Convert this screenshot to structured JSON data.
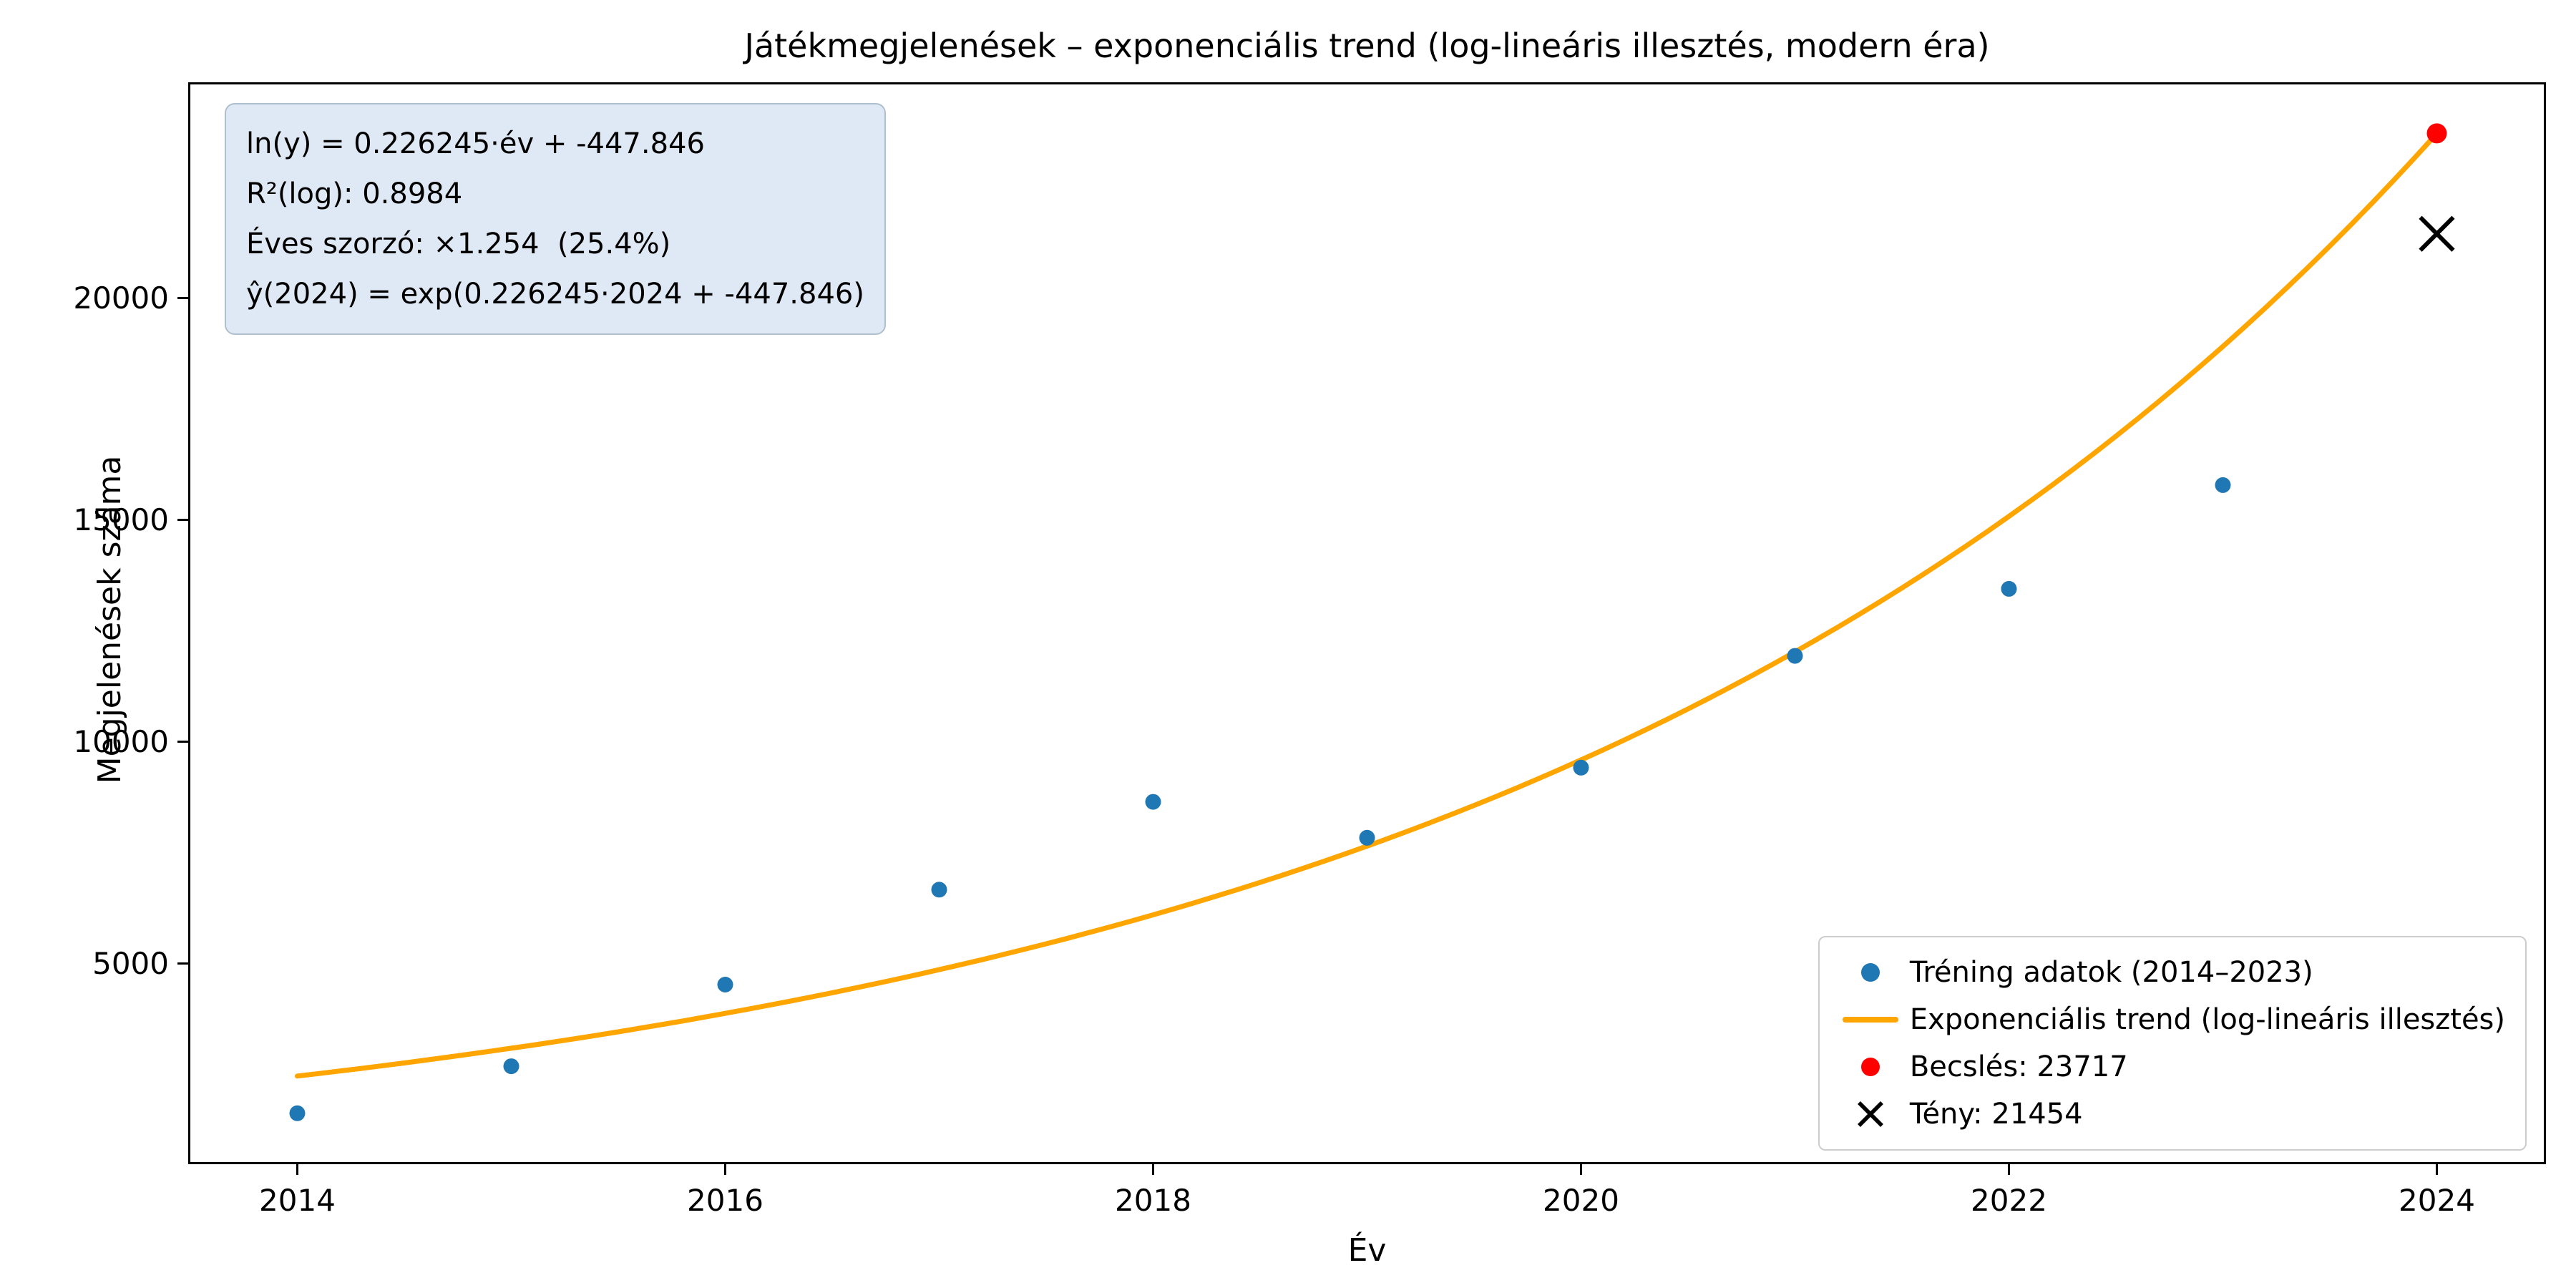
{
  "title": "Játékmegjelenések – exponenciális trend (log-lineáris illesztés, modern éra)",
  "stats_box": {
    "line1": "ln(y) = 0.226245·év + -447.846",
    "line2": "R²(log): 0.8984",
    "line3": "Éves szorzó: ×1.254  (25.4%)",
    "line4": "ŷ(2024) = exp(0.226245·2024 + -447.846)"
  },
  "colors": {
    "training_blue": "#1f77b4",
    "trend_orange": "#ffa500",
    "prediction_red": "#ff0000",
    "actual_black": "#000000",
    "stats_box_bg": "#dfe9f5",
    "stats_box_border": "#aebfce",
    "legend_border": "#cccccc"
  },
  "chart_data": {
    "type": "scatter",
    "title": "Játékmegjelenések – exponenciális trend (log-lineáris illesztés, modern éra)",
    "xlabel": "Év",
    "ylabel": "Megjelenések száma",
    "xlim": [
      2013.5,
      2024.5
    ],
    "ylim": [
      530,
      24820
    ],
    "x_ticks": [
      2014,
      2016,
      2018,
      2020,
      2022,
      2024
    ],
    "y_ticks": [
      5000,
      10000,
      15000,
      20000
    ],
    "grid": false,
    "legend_position": "lower right",
    "trend_formula": {
      "slope": 0.226245,
      "intercept": -447.846,
      "annual_multiplier": 1.254,
      "annual_growth_pct": 25.4,
      "r2_log": 0.8984
    },
    "series": [
      {
        "name": "Tréning adatok (2014–2023)",
        "kind": "scatter",
        "color": "#1f77b4",
        "x": [
          2014,
          2015,
          2016,
          2017,
          2018,
          2019,
          2020,
          2021,
          2022,
          2023
        ],
        "y": [
          1630,
          2690,
          4530,
          6670,
          8650,
          7840,
          9420,
          11940,
          13450,
          15790
        ]
      },
      {
        "name": "Exponenciális trend (log-lineáris illesztés)",
        "kind": "line",
        "color": "#ffa500",
        "x": [
          2014,
          2015,
          2016,
          2017,
          2018,
          2019,
          2020,
          2021,
          2022,
          2023,
          2024
        ],
        "y": [
          2469,
          3095,
          3881,
          4866,
          6102,
          7651,
          9593,
          12029,
          15083,
          18912,
          23717
        ]
      },
      {
        "name": "Becslés: 23717",
        "kind": "scatter",
        "color": "#ff0000",
        "x": [
          2024
        ],
        "y": [
          23717
        ]
      },
      {
        "name": "Tény: 21454",
        "kind": "scatter_x",
        "color": "#000000",
        "x": [
          2024
        ],
        "y": [
          21454
        ]
      }
    ]
  }
}
